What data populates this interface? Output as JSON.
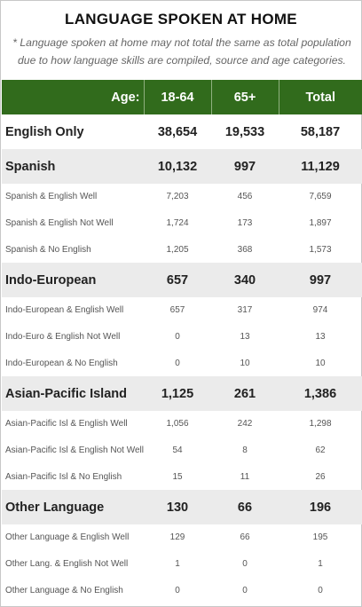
{
  "title": "LANGUAGE SPOKEN AT HOME",
  "note": "* Language spoken at home may not total the same as total population due to how language skills are compiled, source and age categories.",
  "header": {
    "age": "Age:",
    "col1": "18-64",
    "col2": "65+",
    "col3": "Total"
  },
  "rows": [
    {
      "label": "English Only",
      "v1": "38,654",
      "v2": "19,533",
      "v3": "58,187"
    },
    {
      "label": "Spanish",
      "v1": "10,132",
      "v2": "997",
      "v3": "11,129"
    },
    {
      "label": "Spanish & English Well",
      "v1": "7,203",
      "v2": "456",
      "v3": "7,659"
    },
    {
      "label": "Spanish & English Not Well",
      "v1": "1,724",
      "v2": "173",
      "v3": "1,897"
    },
    {
      "label": "Spanish & No English",
      "v1": "1,205",
      "v2": "368",
      "v3": "1,573"
    },
    {
      "label": "Indo-European",
      "v1": "657",
      "v2": "340",
      "v3": "997"
    },
    {
      "label": "Indo-European & English Well",
      "v1": "657",
      "v2": "317",
      "v3": "974"
    },
    {
      "label": "Indo-Euro & English Not Well",
      "v1": "0",
      "v2": "13",
      "v3": "13"
    },
    {
      "label": "Indo-European & No English",
      "v1": "0",
      "v2": "10",
      "v3": "10"
    },
    {
      "label": "Asian-Pacific Island",
      "v1": "1,125",
      "v2": "261",
      "v3": "1,386"
    },
    {
      "label": "Asian-Pacific Isl & English Well",
      "v1": "1,056",
      "v2": "242",
      "v3": "1,298"
    },
    {
      "label": "Asian-Pacific Isl & English Not Well",
      "v1": "54",
      "v2": "8",
      "v3": "62"
    },
    {
      "label": "Asian-Pacific Isl & No English",
      "v1": "15",
      "v2": "11",
      "v3": "26"
    },
    {
      "label": "Other Language",
      "v1": "130",
      "v2": "66",
      "v3": "196"
    },
    {
      "label": "Other Language & English Well",
      "v1": "129",
      "v2": "66",
      "v3": "195"
    },
    {
      "label": "Other Lang. & English Not Well",
      "v1": "1",
      "v2": "0",
      "v3": "1"
    },
    {
      "label": "Other Language & No English",
      "v1": "0",
      "v2": "0",
      "v3": "0"
    }
  ]
}
